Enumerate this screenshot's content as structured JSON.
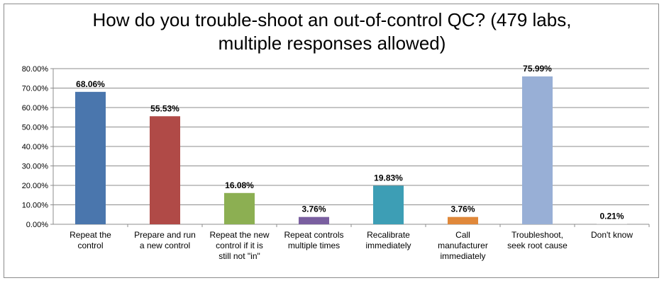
{
  "chart_data": {
    "type": "bar",
    "title_line1": "How do you trouble-shoot an out-of-control QC?  (479 labs,",
    "title_line2": "multiple responses allowed)",
    "categories": [
      [
        "Repeat the",
        "control"
      ],
      [
        "Prepare and run",
        "a new control"
      ],
      [
        "Repeat the new",
        "control if it is",
        "still not \"in\""
      ],
      [
        "Repeat controls",
        "multiple times"
      ],
      [
        "Recalibrate",
        "immediately"
      ],
      [
        "Call",
        "manufacturer",
        "immediately"
      ],
      [
        "Troubleshoot,",
        "seek root cause"
      ],
      [
        "Don't know"
      ]
    ],
    "values": [
      68.06,
      55.53,
      16.08,
      3.76,
      19.83,
      3.76,
      75.99,
      0.21
    ],
    "data_labels": [
      "68.06%",
      "55.53%",
      "16.08%",
      "3.76%",
      "19.83%",
      "3.76%",
      "75.99%",
      "0.21%"
    ],
    "colors": [
      "#4a76ad",
      "#b04a47",
      "#8caf52",
      "#7a5fa0",
      "#3d9eb5",
      "#e0883a",
      "#98afd6",
      "#c8c8c8"
    ],
    "ylim": [
      0,
      80
    ],
    "yticks": [
      "0.00%",
      "10.00%",
      "20.00%",
      "30.00%",
      "40.00%",
      "50.00%",
      "60.00%",
      "70.00%",
      "80.00%"
    ],
    "grid": true,
    "legend": "none"
  }
}
